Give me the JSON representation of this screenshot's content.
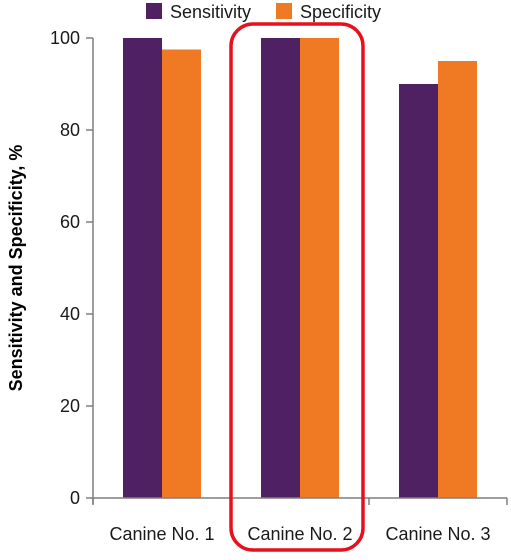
{
  "chart_data": {
    "type": "bar",
    "categories": [
      "Canine No. 1",
      "Canine No. 2",
      "Canine No. 3"
    ],
    "series": [
      {
        "name": "Sensitivity",
        "values": [
          100,
          100,
          90
        ],
        "color": "#4f2163"
      },
      {
        "name": "Specificity",
        "values": [
          97.5,
          100,
          95
        ],
        "color": "#f07a24"
      }
    ],
    "title": "",
    "xlabel": "",
    "ylabel": "Sensitivity and Specificity, %",
    "ylim": [
      0,
      100
    ],
    "yticks": [
      0,
      20,
      40,
      60,
      80,
      100
    ],
    "grid": false,
    "legend_position": "top",
    "highlight": {
      "category": "Canine No. 2",
      "color": "#e8101c"
    }
  }
}
